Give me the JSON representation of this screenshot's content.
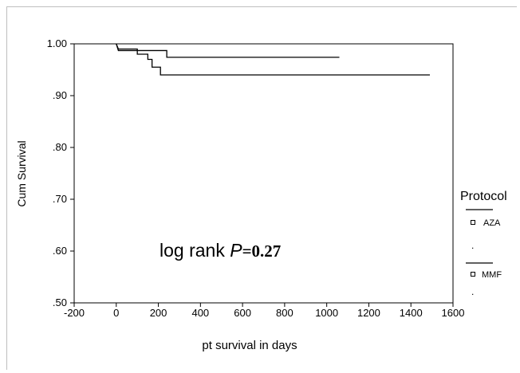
{
  "chart_data": {
    "type": "line",
    "title": "",
    "xlabel": "pt survival in days",
    "ylabel": "Cum Survival",
    "xlim": [
      -200,
      1600
    ],
    "ylim": [
      0.5,
      1.0
    ],
    "x_ticks": [
      -200,
      0,
      200,
      400,
      600,
      800,
      1000,
      1200,
      1400,
      1600
    ],
    "x_tick_labels": [
      "-200",
      "0",
      "200",
      "400",
      "600",
      "800",
      "1000",
      "1200",
      "1400",
      "1600"
    ],
    "y_ticks": [
      0.5,
      0.6,
      0.7,
      0.8,
      0.9,
      1.0
    ],
    "y_tick_labels": [
      ".50",
      ".60",
      ".70",
      ".80",
      ".90",
      "1.00"
    ],
    "grid": false,
    "legend": {
      "title": "Protocol",
      "placement": "right",
      "entries": [
        "AZA",
        "MMF"
      ],
      "separators": [
        ".",
        "."
      ]
    },
    "series": [
      {
        "name": "AZA",
        "step": true,
        "color": "#000000",
        "points": [
          [
            0,
            1.0
          ],
          [
            10,
            0.987
          ],
          [
            240,
            0.987
          ],
          [
            240,
            0.974
          ],
          [
            1060,
            0.974
          ]
        ]
      },
      {
        "name": "MMF",
        "step": true,
        "color": "#000000",
        "points": [
          [
            0,
            1.0
          ],
          [
            10,
            0.99
          ],
          [
            100,
            0.99
          ],
          [
            100,
            0.98
          ],
          [
            150,
            0.98
          ],
          [
            150,
            0.97
          ],
          [
            170,
            0.97
          ],
          [
            170,
            0.955
          ],
          [
            210,
            0.955
          ],
          [
            210,
            0.94
          ],
          [
            1490,
            0.94
          ]
        ]
      }
    ],
    "annotation": {
      "prefix": "log rank ",
      "p_symbol": "P",
      "value": "=0.27"
    }
  }
}
